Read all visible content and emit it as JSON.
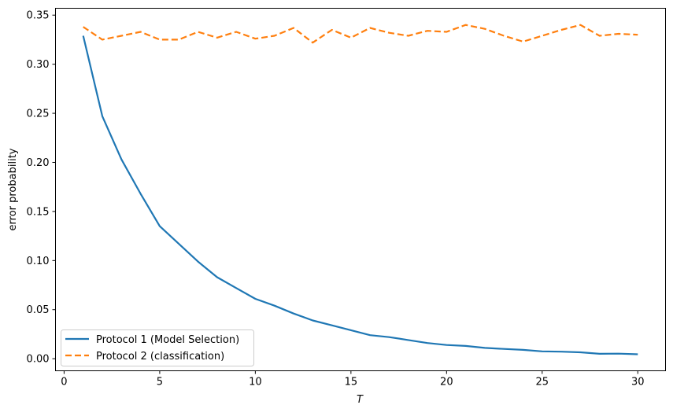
{
  "chart_data": {
    "type": "line",
    "title": "",
    "xlabel": "T",
    "ylabel": "error probability",
    "xlim": [
      -0.45,
      31.45
    ],
    "ylim": [
      -0.0123,
      0.357
    ],
    "xticks": [
      0,
      5,
      10,
      15,
      20,
      25,
      30
    ],
    "xtick_labels": [
      "0",
      "5",
      "10",
      "15",
      "20",
      "25",
      "30"
    ],
    "yticks": [
      0,
      0.05,
      0.1,
      0.15,
      0.2,
      0.25,
      0.3,
      0.35
    ],
    "ytick_labels": [
      "0.00",
      "0.05",
      "0.10",
      "0.15",
      "0.20",
      "0.25",
      "0.30",
      "0.35"
    ],
    "grid": false,
    "legend_position": "lower-left",
    "x": [
      1,
      2,
      3,
      4,
      5,
      6,
      7,
      8,
      9,
      10,
      11,
      12,
      13,
      14,
      15,
      16,
      17,
      18,
      19,
      20,
      21,
      22,
      23,
      24,
      25,
      26,
      27,
      28,
      29,
      30
    ],
    "series": [
      {
        "name": "Protocol 1 (Model Selection)",
        "color": "#1f77b4",
        "style": "solid",
        "values": [
          0.329,
          0.247,
          0.203,
          0.168,
          0.135,
          0.117,
          0.099,
          0.083,
          0.072,
          0.061,
          0.054,
          0.046,
          0.039,
          0.034,
          0.029,
          0.024,
          0.022,
          0.019,
          0.016,
          0.014,
          0.013,
          0.011,
          0.01,
          0.009,
          0.0075,
          0.0072,
          0.0065,
          0.005,
          0.0052,
          0.0045
        ]
      },
      {
        "name": "Protocol 2 (classification)",
        "color": "#ff7f0e",
        "style": "dashed",
        "values": [
          0.338,
          0.325,
          0.329,
          0.333,
          0.325,
          0.325,
          0.333,
          0.327,
          0.333,
          0.326,
          0.329,
          0.337,
          0.322,
          0.335,
          0.327,
          0.337,
          0.332,
          0.329,
          0.334,
          0.333,
          0.34,
          0.336,
          0.329,
          0.323,
          0.329,
          0.335,
          0.34,
          0.329,
          0.331,
          0.33
        ]
      }
    ]
  }
}
